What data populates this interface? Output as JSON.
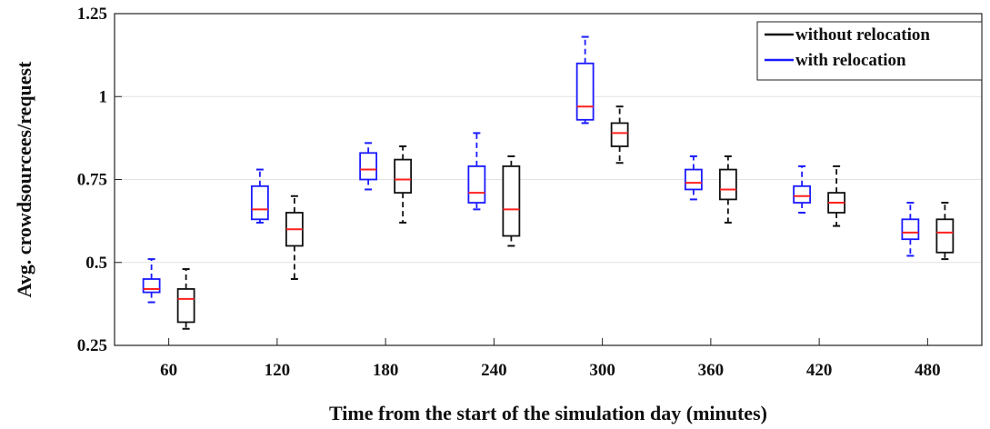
{
  "chart_data": {
    "type": "boxplot",
    "title": "",
    "xlabel": "Time from the start of the simulation day (minutes)",
    "ylabel": "Avg. crowdsourcees/request",
    "categories": [
      "60",
      "120",
      "180",
      "240",
      "300",
      "360",
      "420",
      "480"
    ],
    "ylim": [
      0.25,
      1.25
    ],
    "yticks": [
      "0.25",
      "0.5",
      "0.75",
      "1",
      "1.25"
    ],
    "grid": "horizontal",
    "legend_position": "top-right",
    "series": [
      {
        "name": "with relocation",
        "color": "#1a1aff",
        "boxes": [
          {
            "category": "60",
            "min": 0.38,
            "q1": 0.41,
            "median": 0.42,
            "q3": 0.45,
            "max": 0.51
          },
          {
            "category": "120",
            "min": 0.62,
            "q1": 0.63,
            "median": 0.66,
            "q3": 0.73,
            "max": 0.78
          },
          {
            "category": "180",
            "min": 0.72,
            "q1": 0.75,
            "median": 0.78,
            "q3": 0.83,
            "max": 0.86
          },
          {
            "category": "240",
            "min": 0.66,
            "q1": 0.68,
            "median": 0.71,
            "q3": 0.79,
            "max": 0.89
          },
          {
            "category": "300",
            "min": 0.92,
            "q1": 0.93,
            "median": 0.97,
            "q3": 1.1,
            "max": 1.18
          },
          {
            "category": "360",
            "min": 0.69,
            "q1": 0.72,
            "median": 0.74,
            "q3": 0.78,
            "max": 0.82
          },
          {
            "category": "420",
            "min": 0.65,
            "q1": 0.68,
            "median": 0.7,
            "q3": 0.73,
            "max": 0.79
          },
          {
            "category": "480",
            "min": 0.52,
            "q1": 0.57,
            "median": 0.59,
            "q3": 0.63,
            "max": 0.68
          }
        ]
      },
      {
        "name": "without relocation",
        "color": "#111111",
        "boxes": [
          {
            "category": "60",
            "min": 0.3,
            "q1": 0.32,
            "median": 0.39,
            "q3": 0.42,
            "max": 0.48
          },
          {
            "category": "120",
            "min": 0.45,
            "q1": 0.55,
            "median": 0.6,
            "q3": 0.65,
            "max": 0.7
          },
          {
            "category": "180",
            "min": 0.62,
            "q1": 0.71,
            "median": 0.75,
            "q3": 0.81,
            "max": 0.85
          },
          {
            "category": "240",
            "min": 0.55,
            "q1": 0.58,
            "median": 0.66,
            "q3": 0.79,
            "max": 0.82
          },
          {
            "category": "300",
            "min": 0.8,
            "q1": 0.85,
            "median": 0.89,
            "q3": 0.92,
            "max": 0.97
          },
          {
            "category": "360",
            "min": 0.62,
            "q1": 0.69,
            "median": 0.72,
            "q3": 0.78,
            "max": 0.82
          },
          {
            "category": "420",
            "min": 0.61,
            "q1": 0.65,
            "median": 0.68,
            "q3": 0.71,
            "max": 0.79
          },
          {
            "category": "480",
            "min": 0.51,
            "q1": 0.53,
            "median": 0.59,
            "q3": 0.63,
            "max": 0.68
          }
        ]
      }
    ],
    "median_color": "#ff2020",
    "legend": [
      {
        "label": "without relocation",
        "color": "#111111"
      },
      {
        "label": "with relocation",
        "color": "#1a1aff"
      }
    ]
  }
}
